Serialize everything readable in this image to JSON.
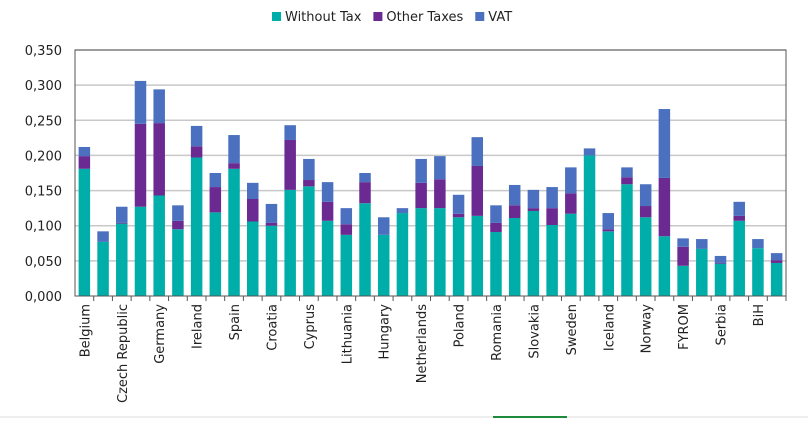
{
  "chart_data": {
    "type": "bar",
    "stacked": true,
    "title": "",
    "xlabel": "",
    "ylabel": "",
    "ylim": [
      0,
      0.35
    ],
    "yticks": [
      "0,000",
      "0,050",
      "0,100",
      "0,150",
      "0,200",
      "0,250",
      "0,300",
      "0,350"
    ],
    "ytick_values": [
      0,
      0.05,
      0.1,
      0.15,
      0.2,
      0.25,
      0.3,
      0.35
    ],
    "grid": true,
    "legend_position": "top",
    "categories": [
      "Belgium",
      "",
      "Czech Republic",
      "",
      "Germany",
      "",
      "Ireland",
      "",
      "Spain",
      "",
      "Croatia",
      "",
      "Cyprus",
      "",
      "Lithuania",
      "",
      "Hungary",
      "",
      "Netherlands",
      "",
      "Poland",
      "",
      "Romania",
      "",
      "Slovakia",
      "",
      "Sweden",
      "",
      "Iceland",
      "",
      "Norway",
      "",
      "FYROM",
      "",
      "Serbia",
      "",
      "BiH",
      ""
    ],
    "series": [
      {
        "name": "Without Tax",
        "color": "#00aea9",
        "values": [
          0.181,
          0.077,
          0.103,
          0.127,
          0.143,
          0.095,
          0.197,
          0.119,
          0.181,
          0.106,
          0.1,
          0.151,
          0.156,
          0.107,
          0.087,
          0.132,
          0.087,
          0.118,
          0.125,
          0.125,
          0.112,
          0.114,
          0.091,
          0.111,
          0.121,
          0.101,
          0.117,
          0.2,
          0.092,
          0.159,
          0.112,
          0.085,
          0.043,
          0.067,
          0.046,
          0.107,
          0.068,
          0.047
        ]
      },
      {
        "name": "Other Taxes",
        "color": "#6a2a91",
        "values": [
          0.018,
          0,
          0.001,
          0.118,
          0.103,
          0.012,
          0.016,
          0.036,
          0.008,
          0.032,
          0.004,
          0.071,
          0.009,
          0.027,
          0.015,
          0.03,
          0,
          0,
          0.036,
          0.041,
          0.005,
          0.071,
          0.013,
          0.018,
          0.004,
          0.024,
          0.029,
          0,
          0.003,
          0.01,
          0.016,
          0.083,
          0.027,
          0,
          0.001,
          0.007,
          0,
          0.004
        ]
      },
      {
        "name": "VAT",
        "color": "#4a70bf",
        "values": [
          0.013,
          0.015,
          0.023,
          0.061,
          0.048,
          0.022,
          0.029,
          0.02,
          0.04,
          0.023,
          0.027,
          0.021,
          0.03,
          0.028,
          0.023,
          0.013,
          0.025,
          0.007,
          0.034,
          0.033,
          0.027,
          0.041,
          0.025,
          0.029,
          0.026,
          0.03,
          0.037,
          0.01,
          0.023,
          0.014,
          0.031,
          0.098,
          0.012,
          0.014,
          0.01,
          0.02,
          0.013,
          0.01
        ]
      }
    ]
  }
}
